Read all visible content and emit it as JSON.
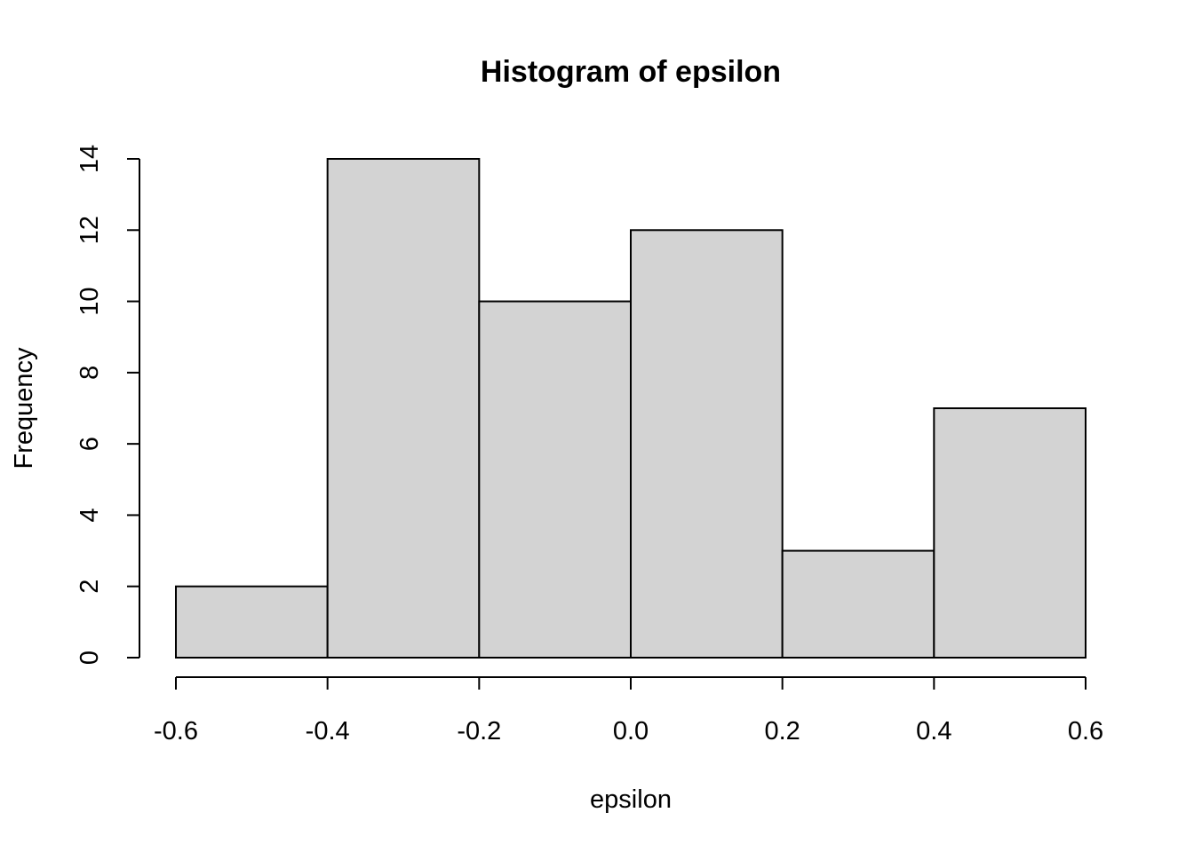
{
  "chart_data": {
    "type": "bar",
    "title": "Histogram of epsilon",
    "xlabel": "epsilon",
    "ylabel": "Frequency",
    "bin_edges": [
      -0.6,
      -0.4,
      -0.2,
      0.0,
      0.2,
      0.4,
      0.6
    ],
    "values": [
      2,
      14,
      10,
      12,
      3,
      7
    ],
    "xlim": [
      -0.6,
      0.6
    ],
    "ylim": [
      0,
      14
    ],
    "x_ticks": [
      "-0.6",
      "-0.4",
      "-0.2",
      "0.0",
      "0.2",
      "0.4",
      "0.6"
    ],
    "y_ticks": [
      "0",
      "2",
      "4",
      "6",
      "8",
      "10",
      "12",
      "14"
    ],
    "grid": false,
    "bar_color": "#d3d3d3"
  }
}
